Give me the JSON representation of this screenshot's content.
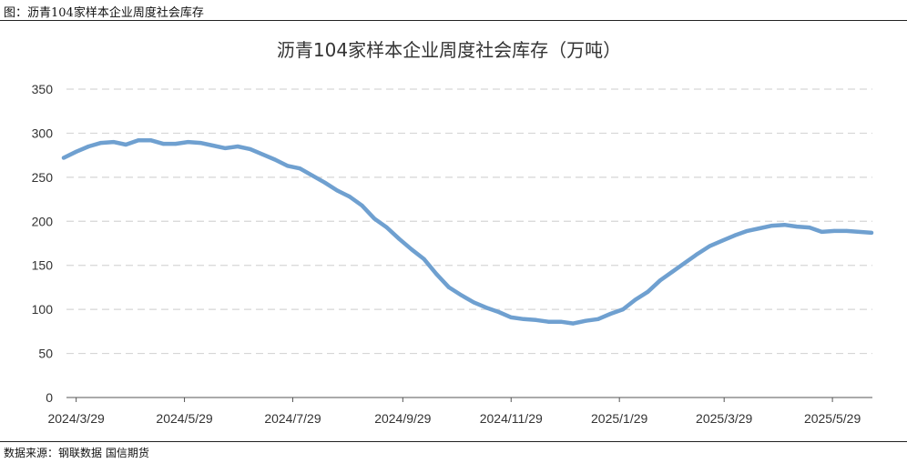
{
  "figure": {
    "caption": "图：沥青104家样本企业周度社会库存",
    "source": "数据来源：钢联数据  国信期货"
  },
  "chart_data": {
    "type": "line",
    "title": "沥青104家样本企业周度社会库存（万吨）",
    "xlabel": "",
    "ylabel": "",
    "ylim": [
      0,
      350
    ],
    "yticks": [
      0,
      50,
      100,
      150,
      200,
      250,
      300,
      350
    ],
    "xticks": [
      "2024/3/29",
      "2024/5/29",
      "2024/7/29",
      "2024/9/29",
      "2024/11/29",
      "2025/1/29",
      "2025/3/29",
      "2025/5/29"
    ],
    "grid": true,
    "legend": "none",
    "color": "#6fa0d0",
    "x": [
      "2024/3/22",
      "2024/3/29",
      "2024/4/5",
      "2024/4/12",
      "2024/4/19",
      "2024/4/26",
      "2024/5/3",
      "2024/5/10",
      "2024/5/17",
      "2024/5/24",
      "2024/5/31",
      "2024/6/7",
      "2024/6/14",
      "2024/6/21",
      "2024/6/28",
      "2024/7/5",
      "2024/7/12",
      "2024/7/19",
      "2024/7/26",
      "2024/8/2",
      "2024/8/9",
      "2024/8/16",
      "2024/8/23",
      "2024/8/30",
      "2024/9/6",
      "2024/9/13",
      "2024/9/20",
      "2024/9/27",
      "2024/10/4",
      "2024/10/11",
      "2024/10/18",
      "2024/10/25",
      "2024/11/1",
      "2024/11/8",
      "2024/11/15",
      "2024/11/22",
      "2024/11/29",
      "2024/12/6",
      "2024/12/13",
      "2024/12/20",
      "2024/12/27",
      "2025/1/3",
      "2025/1/10",
      "2025/1/17",
      "2025/1/24",
      "2025/1/31",
      "2025/2/7",
      "2025/2/14",
      "2025/2/21",
      "2025/2/28",
      "2025/3/7",
      "2025/3/14",
      "2025/3/21",
      "2025/3/28",
      "2025/4/4",
      "2025/4/11",
      "2025/4/18",
      "2025/4/25",
      "2025/5/2",
      "2025/5/9",
      "2025/5/16",
      "2025/5/23",
      "2025/5/30",
      "2025/6/6",
      "2025/6/13",
      "2025/6/20"
    ],
    "values": [
      272,
      279,
      285,
      289,
      290,
      287,
      292,
      292,
      288,
      288,
      290,
      289,
      286,
      283,
      285,
      282,
      276,
      270,
      263,
      260,
      252,
      244,
      235,
      228,
      218,
      203,
      193,
      180,
      168,
      157,
      140,
      125,
      116,
      108,
      102,
      97,
      91,
      89,
      88,
      86,
      86,
      84,
      87,
      89,
      95,
      100,
      111,
      120,
      133,
      143,
      153,
      163,
      172,
      178,
      184,
      189,
      192,
      195,
      196,
      194,
      193,
      188,
      189,
      189,
      188,
      187
    ]
  }
}
